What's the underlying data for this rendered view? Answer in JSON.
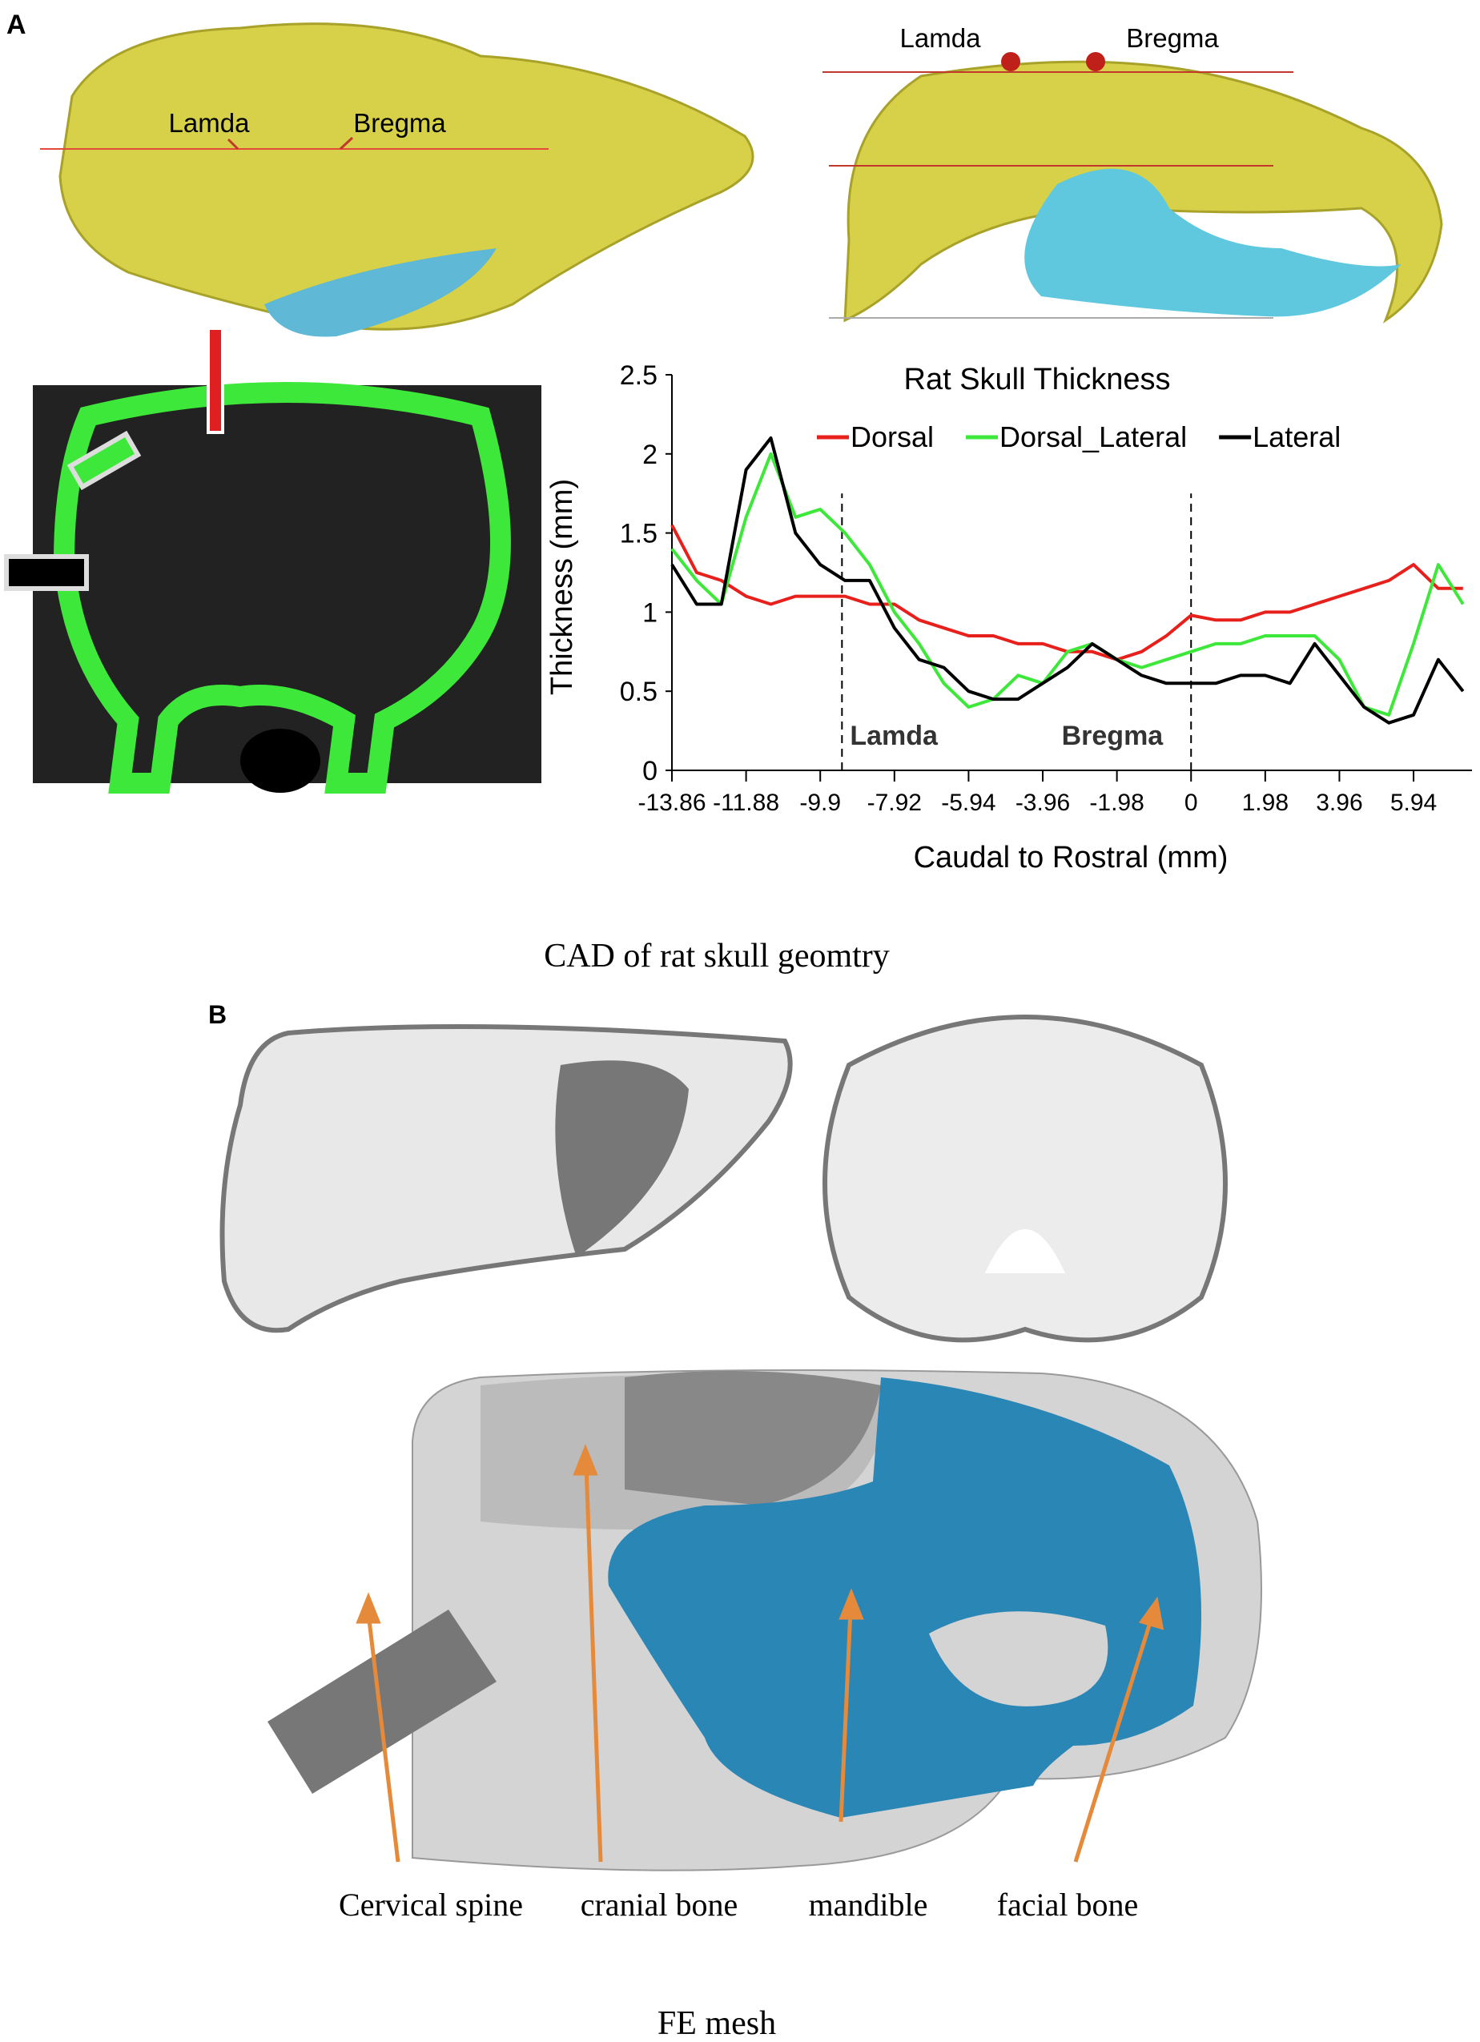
{
  "panel_a": {
    "label": "A",
    "caption": "CAD of rat skull geomtry",
    "image_labels": [
      "Lamda",
      "Bregma",
      "Lamda",
      "Bregma"
    ]
  },
  "panel_b": {
    "label": "B",
    "caption": "FE mesh",
    "image_labels": [
      "Cervical spine",
      "cranial bone",
      "mandible",
      "facial bone"
    ]
  },
  "chart_data": {
    "type": "line",
    "title": "Rat Skull Thickness",
    "x_label": "Caudal to Rostral (mm)",
    "y_label": "Thickness (mm)",
    "x": [
      -13.86,
      -13.2,
      -12.54,
      -11.88,
      -11.22,
      -10.56,
      -9.9,
      -9.24,
      -8.58,
      -7.92,
      -7.26,
      -6.6,
      -5.94,
      -5.28,
      -4.62,
      -3.96,
      -3.3,
      -2.64,
      -1.98,
      -1.32,
      -0.66,
      0,
      0.66,
      1.32,
      1.98,
      2.64,
      3.3,
      3.96,
      4.62,
      5.28,
      5.94,
      6.6,
      7.26
    ],
    "series": [
      {
        "name": "Dorsal",
        "color": "#e8201c",
        "values": [
          1.55,
          1.25,
          1.2,
          1.1,
          1.05,
          1.1,
          1.1,
          1.1,
          1.05,
          1.05,
          0.95,
          0.9,
          0.85,
          0.85,
          0.8,
          0.8,
          0.75,
          0.75,
          0.7,
          0.75,
          0.85,
          0.98,
          0.95,
          0.95,
          1.0,
          1.0,
          1.05,
          1.1,
          1.15,
          1.2,
          1.3,
          1.15,
          1.15
        ]
      },
      {
        "name": "Dorsal_Lateral",
        "color": "#3ee83a",
        "values": [
          1.4,
          1.2,
          1.05,
          1.6,
          2.0,
          1.6,
          1.65,
          1.5,
          1.3,
          1.0,
          0.8,
          0.55,
          0.4,
          0.45,
          0.6,
          0.55,
          0.75,
          0.8,
          0.7,
          0.65,
          0.7,
          0.75,
          0.8,
          0.8,
          0.85,
          0.85,
          0.85,
          0.7,
          0.4,
          0.35,
          0.8,
          1.3,
          1.05
        ]
      },
      {
        "name": "Lateral",
        "color": "#000000",
        "values": [
          1.3,
          1.05,
          1.05,
          1.9,
          2.1,
          1.5,
          1.3,
          1.2,
          1.2,
          0.9,
          0.7,
          0.65,
          0.5,
          0.45,
          0.45,
          0.55,
          0.65,
          0.8,
          0.7,
          0.6,
          0.55,
          0.55,
          0.55,
          0.6,
          0.6,
          0.55,
          0.8,
          0.6,
          0.4,
          0.3,
          0.35,
          0.7,
          0.5
        ]
      }
    ],
    "xlim": [
      -13.86,
      7.5
    ],
    "xticks": [
      -13.86,
      -11.88,
      -9.9,
      -7.92,
      -5.94,
      -3.96,
      -1.98,
      0,
      1.98,
      3.96,
      5.94
    ],
    "ylim": [
      0,
      2.5
    ],
    "yticks": [
      0,
      0.5,
      1,
      1.5,
      2,
      2.5
    ],
    "vlines": [
      {
        "x": -9.32,
        "label": "Lamda"
      },
      {
        "x": 0,
        "label": "Bregma"
      }
    ],
    "legend": "top-right"
  }
}
